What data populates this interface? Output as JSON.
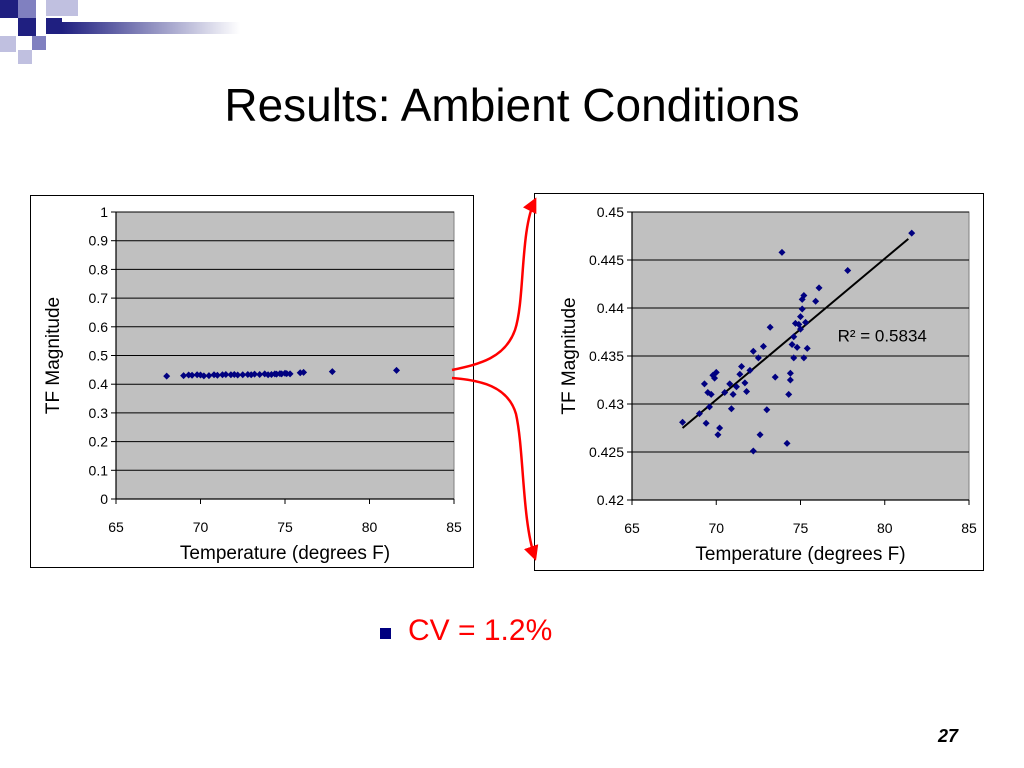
{
  "slide": {
    "title": "Results: Ambient Conditions",
    "bullet_text": "CV = 1.2%",
    "page_number": "27",
    "colors": {
      "accent_navy": "#1f1f80",
      "marker": "#000080",
      "annotation_red": "#ff0000",
      "plot_background": "#c0c0c0"
    }
  },
  "chart_data": [
    {
      "type": "scatter",
      "title": "",
      "xlabel": "Temperature (degrees F)",
      "ylabel": "TF Magnitude",
      "xlim": [
        65,
        85
      ],
      "ylim": [
        0,
        1
      ],
      "xticks": [
        "65",
        "70",
        "75",
        "80",
        "85"
      ],
      "yticks": [
        "0",
        "0.1",
        "0.2",
        "0.3",
        "0.4",
        "0.5",
        "0.6",
        "0.7",
        "0.8",
        "0.9",
        "1"
      ],
      "grid": true,
      "points": [
        [
          68.0,
          0.428
        ],
        [
          69.0,
          0.43
        ],
        [
          69.3,
          0.432
        ],
        [
          69.5,
          0.431
        ],
        [
          69.8,
          0.433
        ],
        [
          70.0,
          0.432
        ],
        [
          70.2,
          0.429
        ],
        [
          70.5,
          0.43
        ],
        [
          70.8,
          0.433
        ],
        [
          71.0,
          0.431
        ],
        [
          71.3,
          0.433
        ],
        [
          71.5,
          0.434
        ],
        [
          71.8,
          0.433
        ],
        [
          72.0,
          0.434
        ],
        [
          72.2,
          0.432
        ],
        [
          72.5,
          0.433
        ],
        [
          72.8,
          0.434
        ],
        [
          73.0,
          0.433
        ],
        [
          73.2,
          0.435
        ],
        [
          73.5,
          0.434
        ],
        [
          73.8,
          0.436
        ],
        [
          74.0,
          0.433
        ],
        [
          74.2,
          0.434
        ],
        [
          74.4,
          0.436
        ],
        [
          74.5,
          0.435
        ],
        [
          74.7,
          0.437
        ],
        [
          74.8,
          0.436
        ],
        [
          75.0,
          0.438
        ],
        [
          75.1,
          0.437
        ],
        [
          75.3,
          0.436
        ],
        [
          75.9,
          0.44
        ],
        [
          76.1,
          0.441
        ],
        [
          77.8,
          0.444
        ],
        [
          81.6,
          0.448
        ]
      ]
    },
    {
      "type": "scatter",
      "title": "",
      "xlabel": "Temperature (degrees F)",
      "ylabel": "TF Magnitude",
      "xlim": [
        65,
        85
      ],
      "ylim": [
        0.42,
        0.45
      ],
      "xticks": [
        "65",
        "70",
        "75",
        "80",
        "85"
      ],
      "yticks": [
        "0.42",
        "0.425",
        "0.43",
        "0.435",
        "0.44",
        "0.445",
        "0.45"
      ],
      "grid": true,
      "annotation": "R² = 0.5834",
      "trendline": [
        [
          68.0,
          0.4275
        ],
        [
          81.4,
          0.4472
        ]
      ],
      "points": [
        [
          68.0,
          0.4281
        ],
        [
          69.0,
          0.429
        ],
        [
          69.3,
          0.4321
        ],
        [
          69.4,
          0.428
        ],
        [
          69.5,
          0.4312
        ],
        [
          69.6,
          0.4297
        ],
        [
          69.7,
          0.431
        ],
        [
          69.8,
          0.433
        ],
        [
          69.9,
          0.4327
        ],
        [
          70.0,
          0.4333
        ],
        [
          70.1,
          0.4268
        ],
        [
          70.2,
          0.4275
        ],
        [
          70.5,
          0.4312
        ],
        [
          70.8,
          0.4321
        ],
        [
          70.9,
          0.4295
        ],
        [
          71.0,
          0.431
        ],
        [
          71.2,
          0.4318
        ],
        [
          71.4,
          0.4331
        ],
        [
          71.5,
          0.4339
        ],
        [
          71.7,
          0.4322
        ],
        [
          71.8,
          0.4313
        ],
        [
          72.0,
          0.4335
        ],
        [
          72.2,
          0.4355
        ],
        [
          72.2,
          0.4251
        ],
        [
          72.5,
          0.4348
        ],
        [
          72.6,
          0.4268
        ],
        [
          72.8,
          0.436
        ],
        [
          73.0,
          0.4294
        ],
        [
          73.2,
          0.438
        ],
        [
          73.5,
          0.4328
        ],
        [
          73.9,
          0.4458
        ],
        [
          74.2,
          0.4259
        ],
        [
          74.3,
          0.431
        ],
        [
          74.4,
          0.4325
        ],
        [
          74.4,
          0.4332
        ],
        [
          74.5,
          0.4362
        ],
        [
          74.6,
          0.4348
        ],
        [
          74.6,
          0.437
        ],
        [
          74.7,
          0.4384
        ],
        [
          74.8,
          0.4359
        ],
        [
          74.9,
          0.4383
        ],
        [
          75.0,
          0.4378
        ],
        [
          75.0,
          0.4391
        ],
        [
          75.1,
          0.4409
        ],
        [
          75.1,
          0.4399
        ],
        [
          75.2,
          0.4348
        ],
        [
          75.2,
          0.4413
        ],
        [
          75.3,
          0.4385
        ],
        [
          75.4,
          0.4358
        ],
        [
          75.9,
          0.4407
        ],
        [
          76.1,
          0.4421
        ],
        [
          77.8,
          0.4439
        ],
        [
          81.6,
          0.4478
        ]
      ]
    }
  ]
}
